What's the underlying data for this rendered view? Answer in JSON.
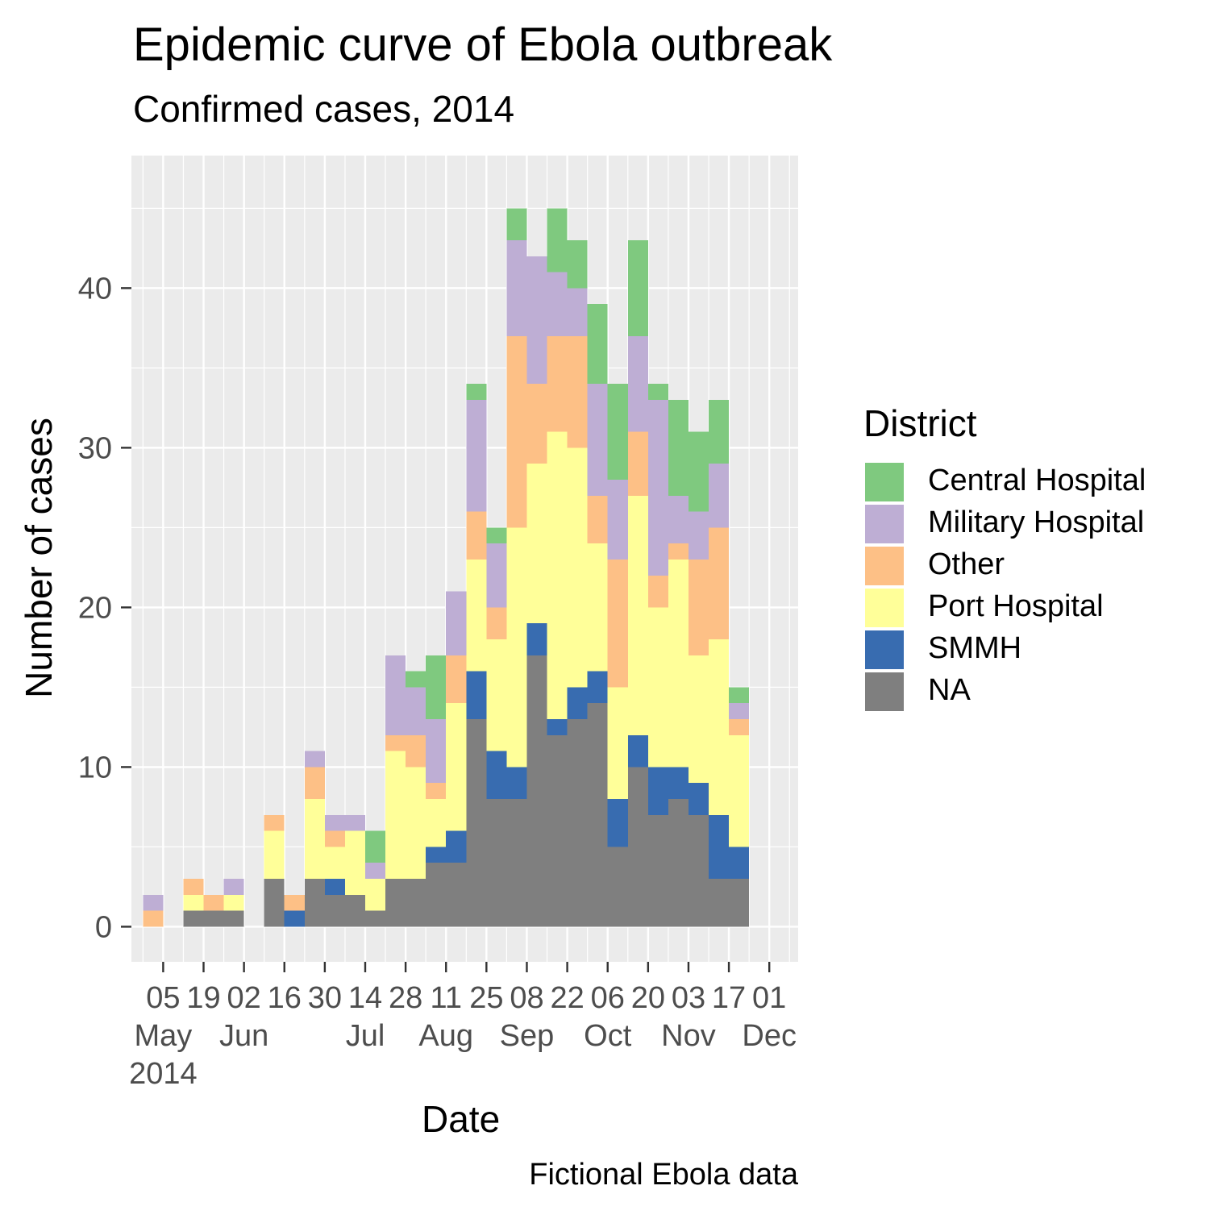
{
  "chart_data": {
    "type": "bar",
    "stacked": true,
    "title": "Epidemic curve of Ebola outbreak",
    "subtitle": "Confirmed cases, 2014",
    "xlabel": "Date",
    "ylabel": "Number of cases",
    "caption": "Fictional Ebola data",
    "ylim": [
      -2.2,
      48.3
    ],
    "y_ticks": [
      0,
      10,
      20,
      30,
      40
    ],
    "grid": true,
    "legend": {
      "title": "District",
      "position": "right"
    },
    "x_ticks": [
      {
        "day": "05",
        "month": "May",
        "year": "2014"
      },
      {
        "day": "19",
        "month": "",
        "year": ""
      },
      {
        "day": "02",
        "month": "Jun",
        "year": ""
      },
      {
        "day": "16",
        "month": "",
        "year": ""
      },
      {
        "day": "30",
        "month": "",
        "year": ""
      },
      {
        "day": "14",
        "month": "Jul",
        "year": ""
      },
      {
        "day": "28",
        "month": "",
        "year": ""
      },
      {
        "day": "11",
        "month": "Aug",
        "year": ""
      },
      {
        "day": "25",
        "month": "",
        "year": ""
      },
      {
        "day": "08",
        "month": "Sep",
        "year": ""
      },
      {
        "day": "22",
        "month": "",
        "year": ""
      },
      {
        "day": "06",
        "month": "Oct",
        "year": ""
      },
      {
        "day": "20",
        "month": "",
        "year": ""
      },
      {
        "day": "03",
        "month": "Nov",
        "year": ""
      },
      {
        "day": "17",
        "month": "",
        "year": ""
      },
      {
        "day": "01",
        "month": "Dec",
        "year": ""
      }
    ],
    "x_range": [
      "2014-04-24",
      "2014-12-11"
    ],
    "x": [
      "2014-04-28",
      "2014-05-05",
      "2014-05-12",
      "2014-05-19",
      "2014-05-26",
      "2014-06-02",
      "2014-06-09",
      "2014-06-16",
      "2014-06-23",
      "2014-06-30",
      "2014-07-07",
      "2014-07-14",
      "2014-07-21",
      "2014-07-28",
      "2014-08-04",
      "2014-08-11",
      "2014-08-18",
      "2014-08-25",
      "2014-09-01",
      "2014-09-08",
      "2014-09-15",
      "2014-09-22",
      "2014-09-29",
      "2014-10-06",
      "2014-10-13",
      "2014-10-20",
      "2014-10-27",
      "2014-11-03",
      "2014-11-10",
      "2014-11-17",
      "2014-11-24"
    ],
    "bin_days": 7,
    "series": [
      {
        "name": "NA",
        "color": "#7F7F7F",
        "values": [
          0,
          0,
          1,
          1,
          1,
          0,
          3,
          0,
          3,
          2,
          2,
          1,
          3,
          3,
          4,
          4,
          13,
          8,
          8,
          17,
          12,
          13,
          14,
          5,
          10,
          7,
          8,
          7,
          3,
          3,
          0
        ]
      },
      {
        "name": "SMMH",
        "color": "#386CB0",
        "values": [
          0,
          0,
          0,
          0,
          0,
          0,
          0,
          1,
          0,
          1,
          0,
          0,
          0,
          0,
          1,
          2,
          3,
          3,
          2,
          2,
          1,
          2,
          2,
          3,
          2,
          3,
          2,
          2,
          4,
          2,
          0
        ]
      },
      {
        "name": "Port Hospital",
        "color": "#FFFF99",
        "values": [
          0,
          0,
          1,
          0,
          1,
          0,
          3,
          0,
          5,
          2,
          4,
          2,
          8,
          7,
          3,
          8,
          7,
          7,
          15,
          10,
          18,
          15,
          8,
          7,
          15,
          10,
          13,
          8,
          11,
          7,
          0
        ]
      },
      {
        "name": "Other",
        "color": "#FDC086",
        "values": [
          1,
          0,
          1,
          1,
          0,
          0,
          1,
          1,
          2,
          1,
          0,
          0,
          1,
          2,
          1,
          3,
          3,
          2,
          12,
          5,
          6,
          7,
          3,
          8,
          4,
          2,
          1,
          6,
          7,
          1,
          0
        ]
      },
      {
        "name": "Military Hospital",
        "color": "#BEAED4",
        "values": [
          1,
          0,
          0,
          0,
          1,
          0,
          0,
          0,
          1,
          1,
          1,
          1,
          5,
          3,
          4,
          4,
          7,
          4,
          6,
          8,
          4,
          3,
          7,
          5,
          6,
          11,
          3,
          3,
          4,
          1,
          0
        ]
      },
      {
        "name": "Central Hospital",
        "color": "#7FC97F",
        "values": [
          0,
          0,
          0,
          0,
          0,
          0,
          0,
          0,
          0,
          0,
          0,
          2,
          0,
          1,
          4,
          0,
          1,
          1,
          2,
          0,
          4,
          3,
          5,
          6,
          6,
          1,
          6,
          5,
          4,
          1,
          0
        ]
      }
    ]
  }
}
